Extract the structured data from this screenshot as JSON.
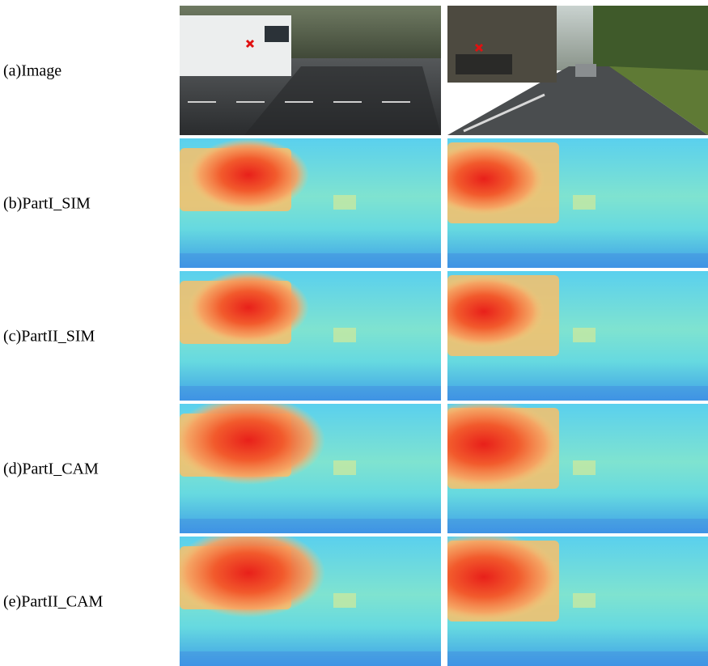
{
  "rows": [
    {
      "label": "(a)Image"
    },
    {
      "label": "(b)PartI_SIM"
    },
    {
      "label": "(c)PartII_SIM"
    },
    {
      "label": "(d)PartI_CAM"
    },
    {
      "label": "(e)PartII_CAM"
    }
  ]
}
